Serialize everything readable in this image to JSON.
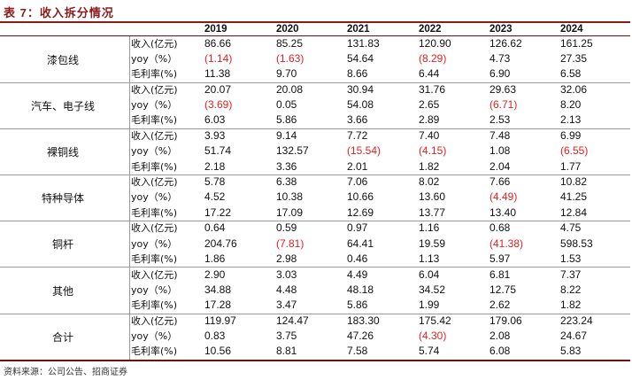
{
  "table_title": "表 7：收入拆分情况",
  "years": [
    "2019",
    "2020",
    "2021",
    "2022",
    "2023",
    "2024"
  ],
  "source": "资料来源：公司公告、招商证券",
  "groups": [
    {
      "name": "漆包线",
      "rows": [
        {
          "metric": "收入(亿元)",
          "values": [
            "86.66",
            "85.25",
            "131.83",
            "120.90",
            "126.62",
            "161.25"
          ]
        },
        {
          "metric": "yoy（%）",
          "values": [
            "(1.14)",
            "(1.63)",
            "54.64",
            "(8.29)",
            "4.73",
            "27.35"
          ]
        },
        {
          "metric": "毛利率(%)",
          "values": [
            "11.38",
            "9.70",
            "8.66",
            "6.44",
            "6.90",
            "6.58"
          ]
        }
      ]
    },
    {
      "name": "汽车、电子线",
      "rows": [
        {
          "metric": "收入(亿元)",
          "values": [
            "20.07",
            "20.08",
            "30.94",
            "31.76",
            "29.63",
            "32.06"
          ]
        },
        {
          "metric": "yoy（%）",
          "values": [
            "(3.69)",
            "0.05",
            "54.08",
            "2.65",
            "(6.71)",
            "8.20"
          ]
        },
        {
          "metric": "毛利率(%)",
          "values": [
            "6.03",
            "5.86",
            "3.66",
            "2.89",
            "2.53",
            "2.13"
          ]
        }
      ]
    },
    {
      "name": "裸铜线",
      "rows": [
        {
          "metric": "收入(亿元)",
          "values": [
            "3.93",
            "9.14",
            "7.72",
            "7.40",
            "7.48",
            "6.99"
          ]
        },
        {
          "metric": "yoy（%）",
          "values": [
            "51.74",
            "132.57",
            "(15.54)",
            "(4.15)",
            "1.08",
            "(6.55)"
          ]
        },
        {
          "metric": "毛利率(%)",
          "values": [
            "2.18",
            "3.36",
            "2.01",
            "1.82",
            "2.04",
            "1.77"
          ]
        }
      ]
    },
    {
      "name": "特种导体",
      "rows": [
        {
          "metric": "收入(亿元)",
          "values": [
            "5.78",
            "6.38",
            "7.06",
            "8.02",
            "7.66",
            "10.82"
          ]
        },
        {
          "metric": "yoy（%）",
          "values": [
            "4.52",
            "10.38",
            "10.66",
            "13.60",
            "(4.49)",
            "41.25"
          ]
        },
        {
          "metric": "毛利率(%)",
          "values": [
            "17.22",
            "17.09",
            "12.69",
            "13.77",
            "13.40",
            "12.84"
          ]
        }
      ]
    },
    {
      "name": "铜杆",
      "rows": [
        {
          "metric": "收入(亿元)",
          "values": [
            "0.64",
            "0.59",
            "0.97",
            "1.16",
            "0.68",
            "4.75"
          ]
        },
        {
          "metric": "yoy（%）",
          "values": [
            "204.76",
            "(7.81)",
            "64.41",
            "19.59",
            "(41.38)",
            "598.53"
          ]
        },
        {
          "metric": "毛利率(%)",
          "values": [
            "1.86",
            "2.98",
            "0.46",
            "1.13",
            "5.97",
            "1.53"
          ]
        }
      ]
    },
    {
      "name": "其他",
      "rows": [
        {
          "metric": "收入(亿元)",
          "values": [
            "2.90",
            "3.03",
            "4.49",
            "6.04",
            "6.81",
            "7.37"
          ]
        },
        {
          "metric": "yoy（%）",
          "values": [
            "34.88",
            "4.48",
            "48.18",
            "34.52",
            "12.75",
            "8.22"
          ]
        },
        {
          "metric": "毛利率(%)",
          "values": [
            "17.28",
            "3.47",
            "5.86",
            "1.99",
            "2.62",
            "1.82"
          ]
        }
      ]
    },
    {
      "name": "合计",
      "rows": [
        {
          "metric": "收入(亿元)",
          "values": [
            "119.97",
            "124.47",
            "183.30",
            "175.42",
            "179.06",
            "223.24"
          ]
        },
        {
          "metric": "yoy（%）",
          "values": [
            "0.83",
            "3.75",
            "47.26",
            "(4.30)",
            "2.08",
            "24.67"
          ]
        },
        {
          "metric": "毛利率(%)",
          "values": [
            "10.56",
            "8.81",
            "7.58",
            "5.74",
            "6.08",
            "5.83"
          ]
        }
      ]
    }
  ]
}
